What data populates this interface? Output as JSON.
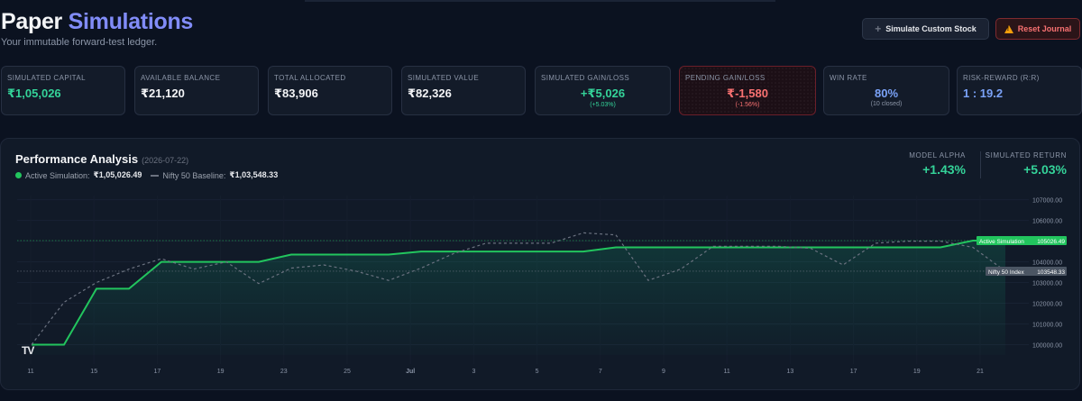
{
  "header": {
    "title_part1": "Paper",
    "title_part2": "Simulations",
    "subtitle": "Your immutable forward-test ledger.",
    "simulate_button": "Simulate Custom Stock",
    "reset_button": "Reset Journal"
  },
  "stats": [
    {
      "label": "SIMULATED CAPITAL",
      "value": "₹1,05,026",
      "sub": ""
    },
    {
      "label": "AVAILABLE BALANCE",
      "value": "₹21,120",
      "sub": ""
    },
    {
      "label": "TOTAL ALLOCATED",
      "value": "₹83,906",
      "sub": ""
    },
    {
      "label": "SIMULATED VALUE",
      "value": "₹82,326",
      "sub": ""
    },
    {
      "label": "SIMULATED GAIN/LOSS",
      "value": "+₹5,026",
      "sub": "(+5.03%)"
    },
    {
      "label": "PENDING GAIN/LOSS",
      "value": "₹-1,580",
      "sub": "(-1.56%)"
    },
    {
      "label": "WIN RATE",
      "value": "80%",
      "sub": "(10 closed)"
    },
    {
      "label": "RISK-REWARD (R:R)",
      "value": "1 : 19.2",
      "sub": ""
    }
  ],
  "panel": {
    "title": "Performance Analysis",
    "date": "(2026-07-22)",
    "legend_active_label": "Active Simulation:",
    "legend_active_value": "₹1,05,026.49",
    "legend_baseline_label": "Nifty 50 Baseline:",
    "legend_baseline_value": "₹1,03,548.33",
    "alpha_label": "MODEL ALPHA",
    "alpha_value": "+1.43%",
    "return_label": "SIMULATED RETURN",
    "return_value": "+5.03%",
    "tv_logo": "TV"
  },
  "chart_data": {
    "type": "line",
    "ylim": [
      99500,
      107200
    ],
    "yticks": [
      100000,
      101000,
      102000,
      103000,
      104000,
      105000,
      106000,
      107000
    ],
    "xtick_labels": [
      "11",
      "15",
      "17",
      "19",
      "23",
      "25",
      "Jul",
      "3",
      "5",
      "7",
      "9",
      "11",
      "13",
      "17",
      "19",
      "21"
    ],
    "series": [
      {
        "name": "Active Simulation",
        "color": "#22c55e",
        "price_label": "105026.49",
        "values": [
          100000,
          100000,
          102700,
          102700,
          104000,
          104000,
          104000,
          104000,
          104350,
          104350,
          104350,
          104350,
          104500,
          104500,
          104500,
          104500,
          104500,
          104500,
          104700,
          104700,
          104700,
          104700,
          104700,
          104700,
          104700,
          104700,
          104700,
          104700,
          104700,
          105026,
          105026
        ]
      },
      {
        "name": "Nifty 50 Index",
        "color": "#6b7280",
        "price_label": "103548.33",
        "values": [
          100000,
          102050,
          103000,
          103650,
          104150,
          103650,
          104000,
          102950,
          103700,
          103850,
          103550,
          103100,
          103700,
          104400,
          104900,
          104900,
          104900,
          105400,
          105300,
          103100,
          103650,
          104750,
          104750,
          104750,
          104650,
          103850,
          104900,
          105000,
          105000,
          104700,
          103548
        ]
      }
    ]
  }
}
